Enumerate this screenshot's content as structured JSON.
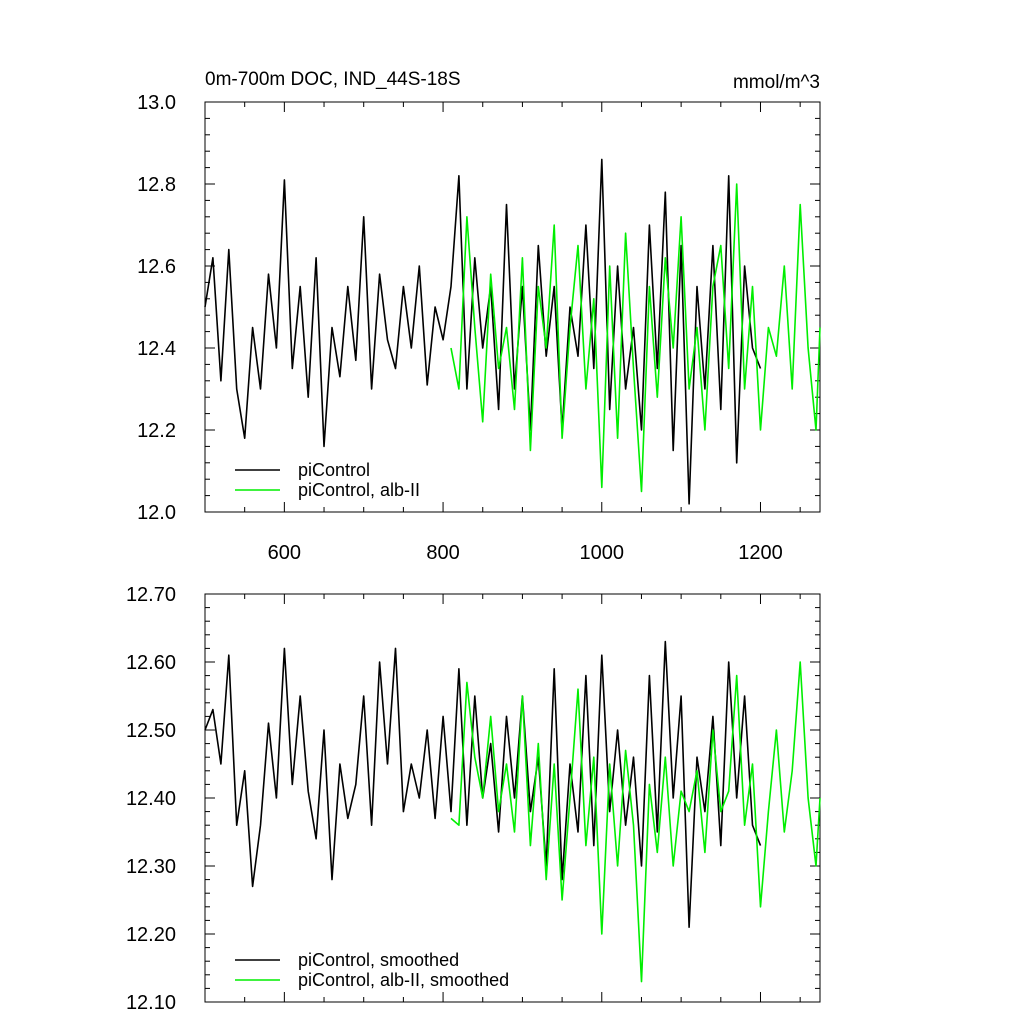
{
  "chart_data": [
    {
      "type": "line",
      "title": "0m-700m DOC, IND_44S-18S",
      "units": "mmol/m^3",
      "xlim": [
        500,
        1275
      ],
      "ylim": [
        12.0,
        13.0
      ],
      "xticks": [
        600,
        800,
        1000,
        1200
      ],
      "xtick_labels": [
        "600",
        "800",
        "1000",
        "1200"
      ],
      "yticks": [
        12.0,
        12.2,
        12.4,
        12.6,
        12.8,
        13.0
      ],
      "ytick_labels": [
        "12.0",
        "12.2",
        "12.4",
        "12.6",
        "12.8",
        "13.0"
      ],
      "grid": false,
      "legend_position": "bottom-left",
      "series": [
        {
          "name": "piControl",
          "color": "#000000",
          "x": [
            500,
            510,
            520,
            530,
            540,
            550,
            560,
            570,
            580,
            590,
            600,
            610,
            620,
            630,
            640,
            650,
            660,
            670,
            680,
            690,
            700,
            710,
            720,
            730,
            740,
            750,
            760,
            770,
            780,
            790,
            800,
            810,
            820,
            830,
            840,
            850,
            860,
            870,
            880,
            890,
            900,
            910,
            920,
            930,
            940,
            950,
            960,
            970,
            980,
            990,
            1000,
            1010,
            1020,
            1030,
            1040,
            1050,
            1060,
            1070,
            1080,
            1090,
            1100,
            1110,
            1120,
            1130,
            1140,
            1150,
            1160,
            1170,
            1180,
            1190,
            1200
          ],
          "y": [
            12.5,
            12.62,
            12.32,
            12.64,
            12.3,
            12.18,
            12.45,
            12.3,
            12.58,
            12.4,
            12.81,
            12.35,
            12.55,
            12.28,
            12.62,
            12.16,
            12.45,
            12.33,
            12.55,
            12.37,
            12.72,
            12.3,
            12.58,
            12.42,
            12.35,
            12.55,
            12.4,
            12.6,
            12.31,
            12.5,
            12.42,
            12.55,
            12.82,
            12.3,
            12.62,
            12.4,
            12.55,
            12.25,
            12.75,
            12.3,
            12.55,
            12.2,
            12.65,
            12.38,
            12.55,
            12.2,
            12.5,
            12.38,
            12.7,
            12.35,
            12.86,
            12.25,
            12.6,
            12.3,
            12.45,
            12.2,
            12.7,
            12.35,
            12.78,
            12.15,
            12.65,
            12.02,
            12.55,
            12.3,
            12.65,
            12.25,
            12.82,
            12.12,
            12.6,
            12.4,
            12.35
          ]
        },
        {
          "name": "piControl, alb-II",
          "color": "#00ee00",
          "x": [
            810,
            820,
            830,
            840,
            850,
            860,
            870,
            880,
            890,
            900,
            910,
            920,
            930,
            940,
            950,
            960,
            970,
            980,
            990,
            1000,
            1010,
            1020,
            1030,
            1040,
            1050,
            1060,
            1070,
            1080,
            1090,
            1100,
            1110,
            1120,
            1130,
            1140,
            1150,
            1160,
            1170,
            1180,
            1190,
            1200,
            1210,
            1220,
            1230,
            1240,
            1250,
            1260,
            1270,
            1275
          ],
          "y": [
            12.4,
            12.3,
            12.72,
            12.45,
            12.22,
            12.58,
            12.35,
            12.45,
            12.25,
            12.62,
            12.15,
            12.55,
            12.4,
            12.7,
            12.18,
            12.45,
            12.65,
            12.3,
            12.52,
            12.06,
            12.6,
            12.18,
            12.68,
            12.35,
            12.05,
            12.55,
            12.28,
            12.62,
            12.4,
            12.72,
            12.3,
            12.45,
            12.2,
            12.55,
            12.65,
            12.35,
            12.8,
            12.3,
            12.55,
            12.2,
            12.45,
            12.38,
            12.6,
            12.3,
            12.75,
            12.4,
            12.2,
            12.45
          ]
        }
      ]
    },
    {
      "type": "line",
      "title": "",
      "xlim": [
        500,
        1275
      ],
      "ylim": [
        12.1,
        12.7
      ],
      "xticks": [
        600,
        800,
        1000,
        1200
      ],
      "yticks": [
        12.1,
        12.2,
        12.3,
        12.4,
        12.5,
        12.6,
        12.7
      ],
      "ytick_labels": [
        "12.10",
        "12.20",
        "12.30",
        "12.40",
        "12.50",
        "12.60",
        "12.70"
      ],
      "grid": false,
      "legend_position": "bottom-left",
      "series": [
        {
          "name": "piControl, smoothed",
          "color": "#000000",
          "x": [
            500,
            510,
            520,
            530,
            540,
            550,
            560,
            570,
            580,
            590,
            600,
            610,
            620,
            630,
            640,
            650,
            660,
            670,
            680,
            690,
            700,
            710,
            720,
            730,
            740,
            750,
            760,
            770,
            780,
            790,
            800,
            810,
            820,
            830,
            840,
            850,
            860,
            870,
            880,
            890,
            900,
            910,
            920,
            930,
            940,
            950,
            960,
            970,
            980,
            990,
            1000,
            1010,
            1020,
            1030,
            1040,
            1050,
            1060,
            1070,
            1080,
            1090,
            1100,
            1110,
            1120,
            1130,
            1140,
            1150,
            1160,
            1170,
            1180,
            1190,
            1200
          ],
          "y": [
            12.5,
            12.53,
            12.45,
            12.61,
            12.36,
            12.44,
            12.27,
            12.36,
            12.51,
            12.4,
            12.62,
            12.42,
            12.55,
            12.41,
            12.34,
            12.5,
            12.28,
            12.45,
            12.37,
            12.42,
            12.55,
            12.36,
            12.6,
            12.45,
            12.62,
            12.38,
            12.45,
            12.4,
            12.5,
            12.37,
            12.52,
            12.38,
            12.59,
            12.36,
            12.55,
            12.4,
            12.48,
            12.35,
            12.52,
            12.4,
            12.55,
            12.38,
            12.46,
            12.3,
            12.59,
            12.28,
            12.45,
            12.35,
            12.58,
            12.33,
            12.61,
            12.38,
            12.5,
            12.36,
            12.46,
            12.3,
            12.58,
            12.35,
            12.63,
            12.4,
            12.55,
            12.21,
            12.46,
            12.38,
            12.52,
            12.33,
            12.6,
            12.4,
            12.55,
            12.36,
            12.33
          ]
        },
        {
          "name": "piControl, alb-II, smoothed",
          "color": "#00ee00",
          "x": [
            810,
            820,
            830,
            840,
            850,
            860,
            870,
            880,
            890,
            900,
            910,
            920,
            930,
            940,
            950,
            960,
            970,
            980,
            990,
            1000,
            1010,
            1020,
            1030,
            1040,
            1050,
            1060,
            1070,
            1080,
            1090,
            1100,
            1110,
            1120,
            1130,
            1140,
            1150,
            1160,
            1170,
            1180,
            1190,
            1200,
            1210,
            1220,
            1230,
            1240,
            1250,
            1260,
            1270,
            1275
          ],
          "y": [
            12.37,
            12.36,
            12.57,
            12.46,
            12.4,
            12.52,
            12.38,
            12.45,
            12.35,
            12.55,
            12.33,
            12.48,
            12.28,
            12.45,
            12.25,
            12.4,
            12.56,
            12.33,
            12.46,
            12.2,
            12.45,
            12.3,
            12.47,
            12.36,
            12.13,
            12.42,
            12.32,
            12.46,
            12.3,
            12.41,
            12.38,
            12.44,
            12.32,
            12.5,
            12.38,
            12.41,
            12.58,
            12.36,
            12.45,
            12.24,
            12.38,
            12.5,
            12.35,
            12.44,
            12.6,
            12.4,
            12.3,
            12.4
          ]
        }
      ]
    }
  ]
}
